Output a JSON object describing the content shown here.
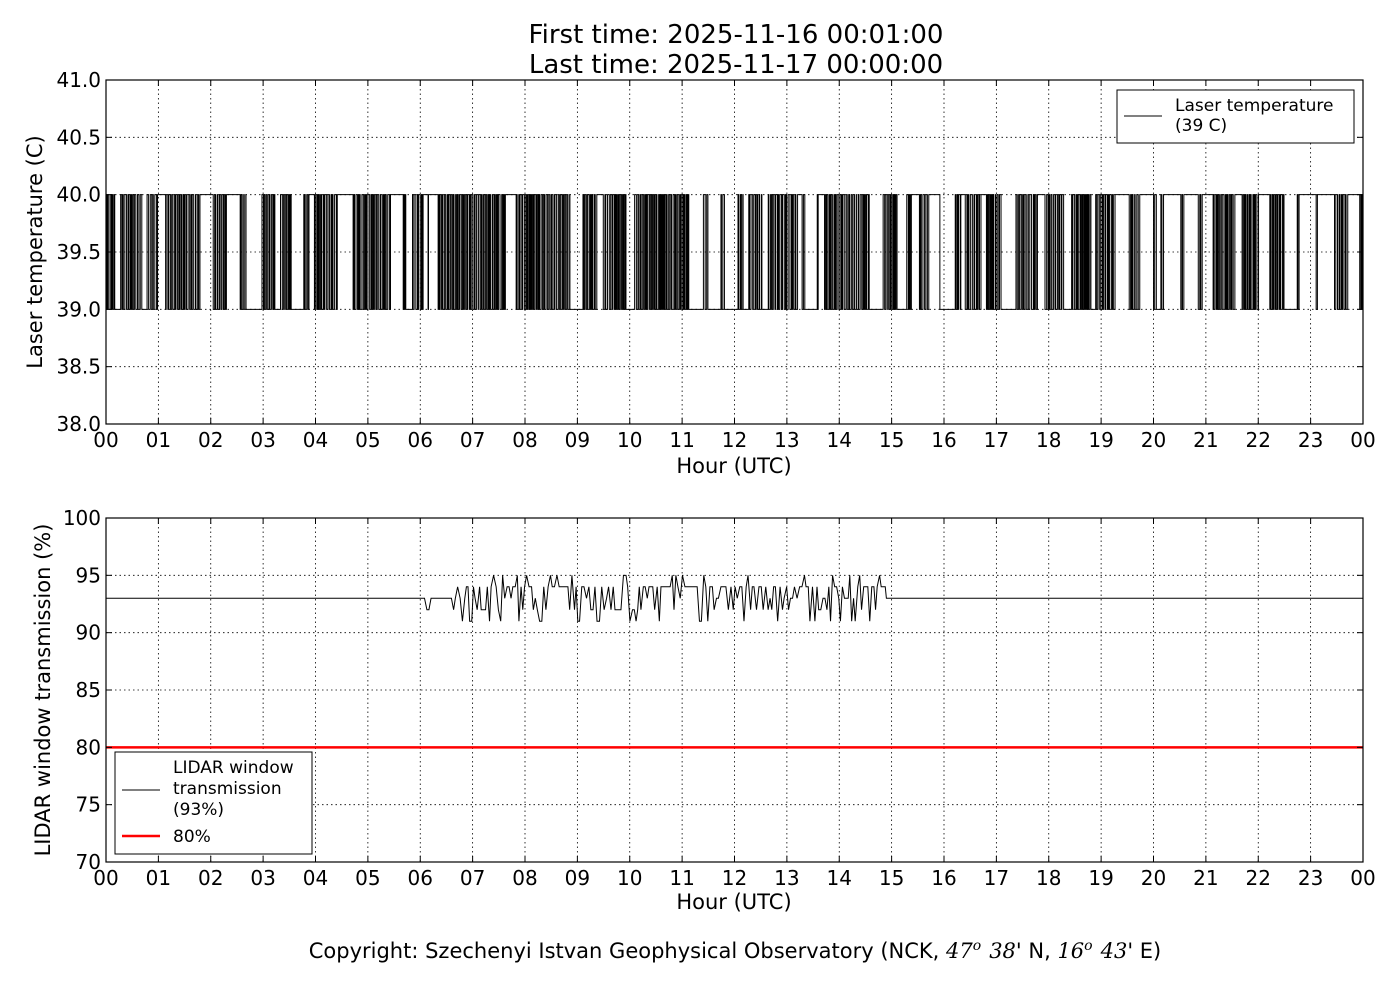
{
  "title": {
    "line1": "First time: 2025-11-16 00:01:00",
    "line2": "Last time: 2025-11-17 00:00:00"
  },
  "copyright": {
    "prefix": "Copyright: Szechenyi Istvan Geophysical Observatory (NCK, ",
    "lat_deg": "47",
    "deg_sym": "o",
    "lat_min": "38",
    "lat_suffix": "' N, ",
    "lon_deg": "16",
    "lon_min": "43",
    "lon_suffix": "' E)"
  },
  "chart_data": [
    {
      "type": "line",
      "xlabel": "Hour (UTC)",
      "ylabel": "Laser temperature (C)",
      "xlim": [
        0,
        24
      ],
      "ylim": [
        38.0,
        41.0
      ],
      "xticks": [
        0,
        1,
        2,
        3,
        4,
        5,
        6,
        7,
        8,
        9,
        10,
        11,
        12,
        13,
        14,
        15,
        16,
        17,
        18,
        19,
        20,
        21,
        22,
        23,
        24
      ],
      "xtick_labels": [
        "00",
        "01",
        "02",
        "03",
        "04",
        "05",
        "06",
        "07",
        "08",
        "09",
        "10",
        "11",
        "12",
        "13",
        "14",
        "15",
        "16",
        "17",
        "18",
        "19",
        "20",
        "21",
        "22",
        "23",
        "00"
      ],
      "yticks": [
        38.0,
        38.5,
        39.0,
        39.5,
        40.0,
        40.5,
        41.0
      ],
      "ytick_labels": [
        "38.0",
        "38.5",
        "39.0",
        "39.5",
        "40.0",
        "40.5",
        "41.0"
      ],
      "grid": true,
      "legend_position": "top-right",
      "series": [
        {
          "name": "Laser temperature\n(39 C)",
          "color": "#000000",
          "pattern": "toggles between 39.0 and 40.0 throughout the day",
          "low": 39.0,
          "high": 40.0
        }
      ]
    },
    {
      "type": "line",
      "xlabel": "Hour (UTC)",
      "ylabel": "LIDAR window transmission (%)",
      "xlim": [
        0,
        24
      ],
      "ylim": [
        70,
        100
      ],
      "xticks": [
        0,
        1,
        2,
        3,
        4,
        5,
        6,
        7,
        8,
        9,
        10,
        11,
        12,
        13,
        14,
        15,
        16,
        17,
        18,
        19,
        20,
        21,
        22,
        23,
        24
      ],
      "xtick_labels": [
        "00",
        "01",
        "02",
        "03",
        "04",
        "05",
        "06",
        "07",
        "08",
        "09",
        "10",
        "11",
        "12",
        "13",
        "14",
        "15",
        "16",
        "17",
        "18",
        "19",
        "20",
        "21",
        "22",
        "23",
        "00"
      ],
      "yticks": [
        70,
        75,
        80,
        85,
        90,
        95,
        100
      ],
      "ytick_labels": [
        "70",
        "75",
        "80",
        "85",
        "90",
        "95",
        "100"
      ],
      "grid": true,
      "legend_position": "lower-left",
      "series": [
        {
          "name": "LIDAR window\ntransmission\n(93%)",
          "color": "#000000",
          "baseline": 93,
          "noisy_range_hours": [
            6.0,
            14.9
          ],
          "noisy_min": 91,
          "noisy_max": 95
        },
        {
          "name": "80%",
          "color": "#ff0000",
          "value": 80
        }
      ]
    }
  ]
}
